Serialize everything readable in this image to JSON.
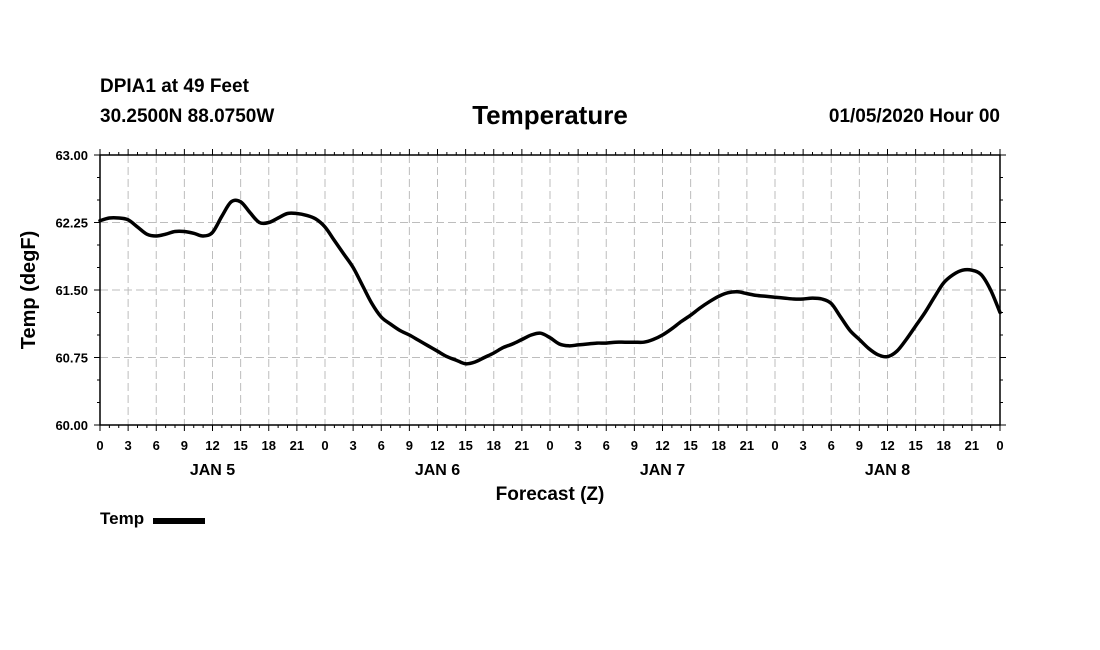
{
  "header": {
    "station": "DPIA1 at 49 Feet",
    "coords": "30.2500N 88.0750W",
    "datetime": "01/05/2020 Hour 00"
  },
  "legend": {
    "label": "Temp"
  },
  "chart_data": {
    "type": "line",
    "title": "Temperature",
    "xlabel": "Forecast (Z)",
    "ylabel": "Temp (degF)",
    "x_unit": "hours since 2020-01-05 00Z",
    "xlim": [
      0,
      96
    ],
    "ylim": [
      60.0,
      63.0
    ],
    "grid": true,
    "yticks": [
      "60.00",
      "60.75",
      "61.50",
      "62.25",
      "63.00"
    ],
    "xtick_hours": [
      0,
      3,
      6,
      9,
      12,
      15,
      18,
      21,
      24,
      27,
      30,
      33,
      36,
      39,
      42,
      45,
      48,
      51,
      54,
      57,
      60,
      63,
      66,
      69,
      72,
      75,
      78,
      81,
      84,
      87,
      90,
      93,
      96
    ],
    "xtick_labels": [
      "0",
      "3",
      "6",
      "9",
      "12",
      "15",
      "18",
      "21",
      "0",
      "3",
      "6",
      "9",
      "12",
      "15",
      "18",
      "21",
      "0",
      "3",
      "6",
      "9",
      "12",
      "15",
      "18",
      "21",
      "0",
      "3",
      "6",
      "9",
      "12",
      "15",
      "18",
      "21",
      "0"
    ],
    "day_labels": [
      {
        "hour": 12,
        "label": "JAN 5"
      },
      {
        "hour": 36,
        "label": "JAN 6"
      },
      {
        "hour": 60,
        "label": "JAN 7"
      },
      {
        "hour": 84,
        "label": "JAN 8"
      }
    ],
    "series": [
      {
        "name": "Temp",
        "color": "#000000",
        "x": [
          0,
          1,
          2,
          3,
          4,
          5,
          6,
          7,
          8,
          9,
          10,
          11,
          12,
          13,
          14,
          15,
          16,
          17,
          18,
          19,
          20,
          21,
          22,
          23,
          24,
          25,
          26,
          27,
          28,
          29,
          30,
          31,
          32,
          33,
          34,
          35,
          36,
          37,
          38,
          39,
          40,
          41,
          42,
          43,
          44,
          45,
          46,
          47,
          48,
          49,
          50,
          51,
          52,
          53,
          54,
          55,
          56,
          57,
          58,
          59,
          60,
          61,
          62,
          63,
          64,
          65,
          66,
          67,
          68,
          69,
          70,
          71,
          72,
          73,
          74,
          75,
          76,
          77,
          78,
          79,
          80,
          81,
          82,
          83,
          84,
          85,
          86,
          87,
          88,
          89,
          90,
          91,
          92,
          93,
          94,
          95,
          96
        ],
        "values": [
          62.27,
          62.3,
          62.3,
          62.28,
          62.2,
          62.12,
          62.1,
          62.12,
          62.15,
          62.15,
          62.13,
          62.1,
          62.14,
          62.32,
          62.48,
          62.48,
          62.36,
          62.25,
          62.25,
          62.3,
          62.35,
          62.35,
          62.33,
          62.29,
          62.2,
          62.05,
          61.9,
          61.75,
          61.55,
          61.35,
          61.2,
          61.12,
          61.05,
          61.0,
          60.94,
          60.88,
          60.82,
          60.76,
          60.72,
          60.68,
          60.7,
          60.75,
          60.8,
          60.86,
          60.9,
          60.95,
          61.0,
          61.02,
          60.97,
          60.9,
          60.88,
          60.89,
          60.9,
          60.91,
          60.91,
          60.92,
          60.92,
          60.92,
          60.92,
          60.95,
          61.0,
          61.07,
          61.15,
          61.22,
          61.3,
          61.37,
          61.43,
          61.47,
          61.48,
          61.46,
          61.44,
          61.43,
          61.42,
          61.41,
          61.4,
          61.4,
          61.41,
          61.4,
          61.35,
          61.2,
          61.05,
          60.95,
          60.85,
          60.78,
          60.76,
          60.82,
          60.95,
          61.1,
          61.25,
          61.42,
          61.58,
          61.67,
          61.72,
          61.72,
          61.67,
          61.5,
          61.25
        ]
      }
    ]
  }
}
